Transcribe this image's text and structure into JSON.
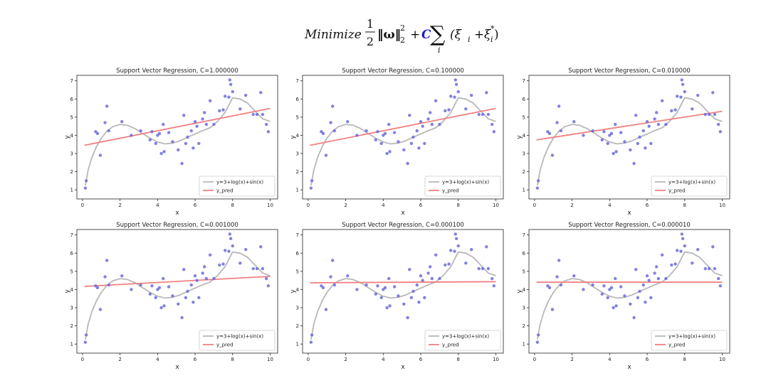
{
  "formula": {
    "minimize": "Minimize",
    "frac_num": "1",
    "frac_den": "2",
    "norm": "‖ω‖",
    "norm_sub": "2",
    "norm_sup": "2",
    "plus1": "+",
    "c": "C",
    "sum": "∑",
    "sum_sub": "i",
    "paren_expr_1": "(ξ",
    "xi_sub_1": "i",
    "plus2": "+",
    "xi_2": "ξ",
    "xi_sub_2": "i",
    "xi_sup_2": "*",
    "close": ")"
  },
  "colors": {
    "true_curve": "#b8b8b8",
    "pred_line": "#f08080",
    "points": "#6b6bdb",
    "c_color": "#1a1ad0"
  },
  "chart_data": [
    {
      "type": "scatter",
      "title": "Support Vector Regression, C=1.000000",
      "xlabel": "x",
      "ylabel": "y",
      "xlim": [
        -0.3,
        10.4
      ],
      "ylim": [
        0.5,
        7.3
      ],
      "xticks": [
        "0",
        "2",
        "4",
        "6",
        "8",
        "10"
      ],
      "yticks": [
        "1",
        "2",
        "3",
        "4",
        "5",
        "6",
        "7"
      ],
      "legend": {
        "position": "lower-right",
        "entries": [
          "y=3+log(x)+sin(x)",
          "y_pred"
        ]
      },
      "pred": {
        "x": [
          0.1,
          10.0
        ],
        "y": [
          3.45,
          5.48
        ]
      }
    },
    {
      "type": "scatter",
      "title": "Support Vector Regression, C=0.100000",
      "xlabel": "x",
      "ylabel": "y",
      "xlim": [
        -0.3,
        10.4
      ],
      "ylim": [
        0.5,
        7.3
      ],
      "xticks": [
        "0",
        "2",
        "4",
        "6",
        "8",
        "10"
      ],
      "yticks": [
        "1",
        "2",
        "3",
        "4",
        "5",
        "6",
        "7"
      ],
      "legend": {
        "position": "lower-right",
        "entries": [
          "y=3+log(x)+sin(x)",
          "y_pred"
        ]
      },
      "pred": {
        "x": [
          0.1,
          10.0
        ],
        "y": [
          3.45,
          5.48
        ]
      }
    },
    {
      "type": "scatter",
      "title": "Support Vector Regression, C=0.010000",
      "xlabel": "x",
      "ylabel": "y",
      "xlim": [
        -0.3,
        10.4
      ],
      "ylim": [
        0.5,
        7.3
      ],
      "xticks": [
        "0",
        "2",
        "4",
        "6",
        "8",
        "10"
      ],
      "yticks": [
        "1",
        "2",
        "3",
        "4",
        "5",
        "6",
        "7"
      ],
      "legend": {
        "position": "lower-right",
        "entries": [
          "y=3+log(x)+sin(x)",
          "y_pred"
        ]
      },
      "pred": {
        "x": [
          0.1,
          10.0
        ],
        "y": [
          3.75,
          5.32
        ]
      }
    },
    {
      "type": "scatter",
      "title": "Support Vector Regression, C=0.001000",
      "xlabel": "x",
      "ylabel": "y",
      "xlim": [
        -0.3,
        10.4
      ],
      "ylim": [
        0.5,
        7.3
      ],
      "xticks": [
        "0",
        "2",
        "4",
        "6",
        "8",
        "10"
      ],
      "yticks": [
        "1",
        "2",
        "3",
        "4",
        "5",
        "6",
        "7"
      ],
      "legend": {
        "position": "lower-right",
        "entries": [
          "y=3+log(x)+sin(x)",
          "y_pred"
        ]
      },
      "pred": {
        "x": [
          0.1,
          10.0
        ],
        "y": [
          4.17,
          4.72
        ]
      }
    },
    {
      "type": "scatter",
      "title": "Support Vector Regression, C=0.000100",
      "xlabel": "x",
      "ylabel": "y",
      "xlim": [
        -0.3,
        10.4
      ],
      "ylim": [
        0.5,
        7.3
      ],
      "xticks": [
        "0",
        "2",
        "4",
        "6",
        "8",
        "10"
      ],
      "yticks": [
        "1",
        "2",
        "3",
        "4",
        "5",
        "6",
        "7"
      ],
      "legend": {
        "position": "lower-right",
        "entries": [
          "y=3+log(x)+sin(x)",
          "y_pred"
        ]
      },
      "pred": {
        "x": [
          0.1,
          10.0
        ],
        "y": [
          4.37,
          4.43
        ]
      }
    },
    {
      "type": "scatter",
      "title": "Support Vector Regression, C=0.000010",
      "xlabel": "x",
      "ylabel": "y",
      "xlim": [
        -0.3,
        10.4
      ],
      "ylim": [
        0.5,
        7.3
      ],
      "xticks": [
        "0",
        "2",
        "4",
        "6",
        "8",
        "10"
      ],
      "yticks": [
        "1",
        "2",
        "3",
        "4",
        "5",
        "6",
        "7"
      ],
      "legend": {
        "position": "lower-right",
        "entries": [
          "y=3+log(x)+sin(x)",
          "y_pred"
        ]
      },
      "pred": {
        "x": [
          0.1,
          10.0
        ],
        "y": [
          4.4,
          4.4
        ]
      }
    }
  ],
  "shared": {
    "true_curve": {
      "x": [
        0.15,
        0.3,
        0.5,
        0.75,
        1.0,
        1.3,
        1.6,
        2.0,
        2.4,
        2.8,
        3.2,
        3.6,
        4.0,
        4.4,
        4.8,
        5.2,
        5.6,
        6.0,
        6.4,
        6.8,
        7.2,
        7.6,
        8.0,
        8.4,
        8.8,
        9.2,
        9.6,
        10.0
      ],
      "y": [
        1.25,
        2.09,
        2.79,
        3.39,
        3.84,
        4.23,
        4.47,
        4.6,
        4.55,
        4.37,
        4.1,
        3.84,
        3.63,
        3.53,
        3.57,
        3.7,
        3.9,
        4.07,
        4.26,
        4.41,
        4.77,
        5.26,
        6.06,
        6.0,
        5.77,
        5.34,
        4.91,
        4.76
      ]
    },
    "points": {
      "x": [
        0.15,
        0.2,
        0.7,
        0.8,
        0.95,
        1.2,
        1.3,
        1.4,
        2.1,
        2.6,
        3.1,
        3.6,
        3.7,
        3.9,
        4.0,
        4.1,
        4.2,
        4.3,
        4.35,
        4.6,
        4.8,
        5.1,
        5.3,
        5.4,
        5.5,
        5.6,
        5.8,
        5.9,
        6.0,
        6.1,
        6.2,
        6.4,
        6.5,
        6.6,
        6.8,
        7.0,
        7.3,
        7.5,
        7.6,
        7.8,
        7.85,
        7.9,
        8.0,
        8.4,
        8.7,
        9.1,
        9.3,
        9.5,
        9.6,
        9.8,
        9.9
      ],
      "y": [
        1.1,
        1.5,
        4.2,
        4.1,
        2.9,
        4.7,
        5.6,
        4.25,
        4.75,
        4.0,
        4.25,
        3.75,
        4.2,
        3.55,
        4.0,
        4.1,
        3.0,
        4.6,
        3.1,
        4.15,
        3.65,
        3.2,
        2.45,
        5.1,
        3.55,
        3.9,
        4.25,
        3.3,
        4.75,
        4.5,
        3.55,
        4.9,
        5.25,
        4.6,
        5.9,
        4.6,
        5.35,
        5.4,
        6.15,
        6.1,
        7.05,
        6.8,
        6.4,
        5.45,
        6.2,
        5.15,
        5.15,
        6.35,
        5.15,
        4.6,
        4.2
      ]
    }
  }
}
